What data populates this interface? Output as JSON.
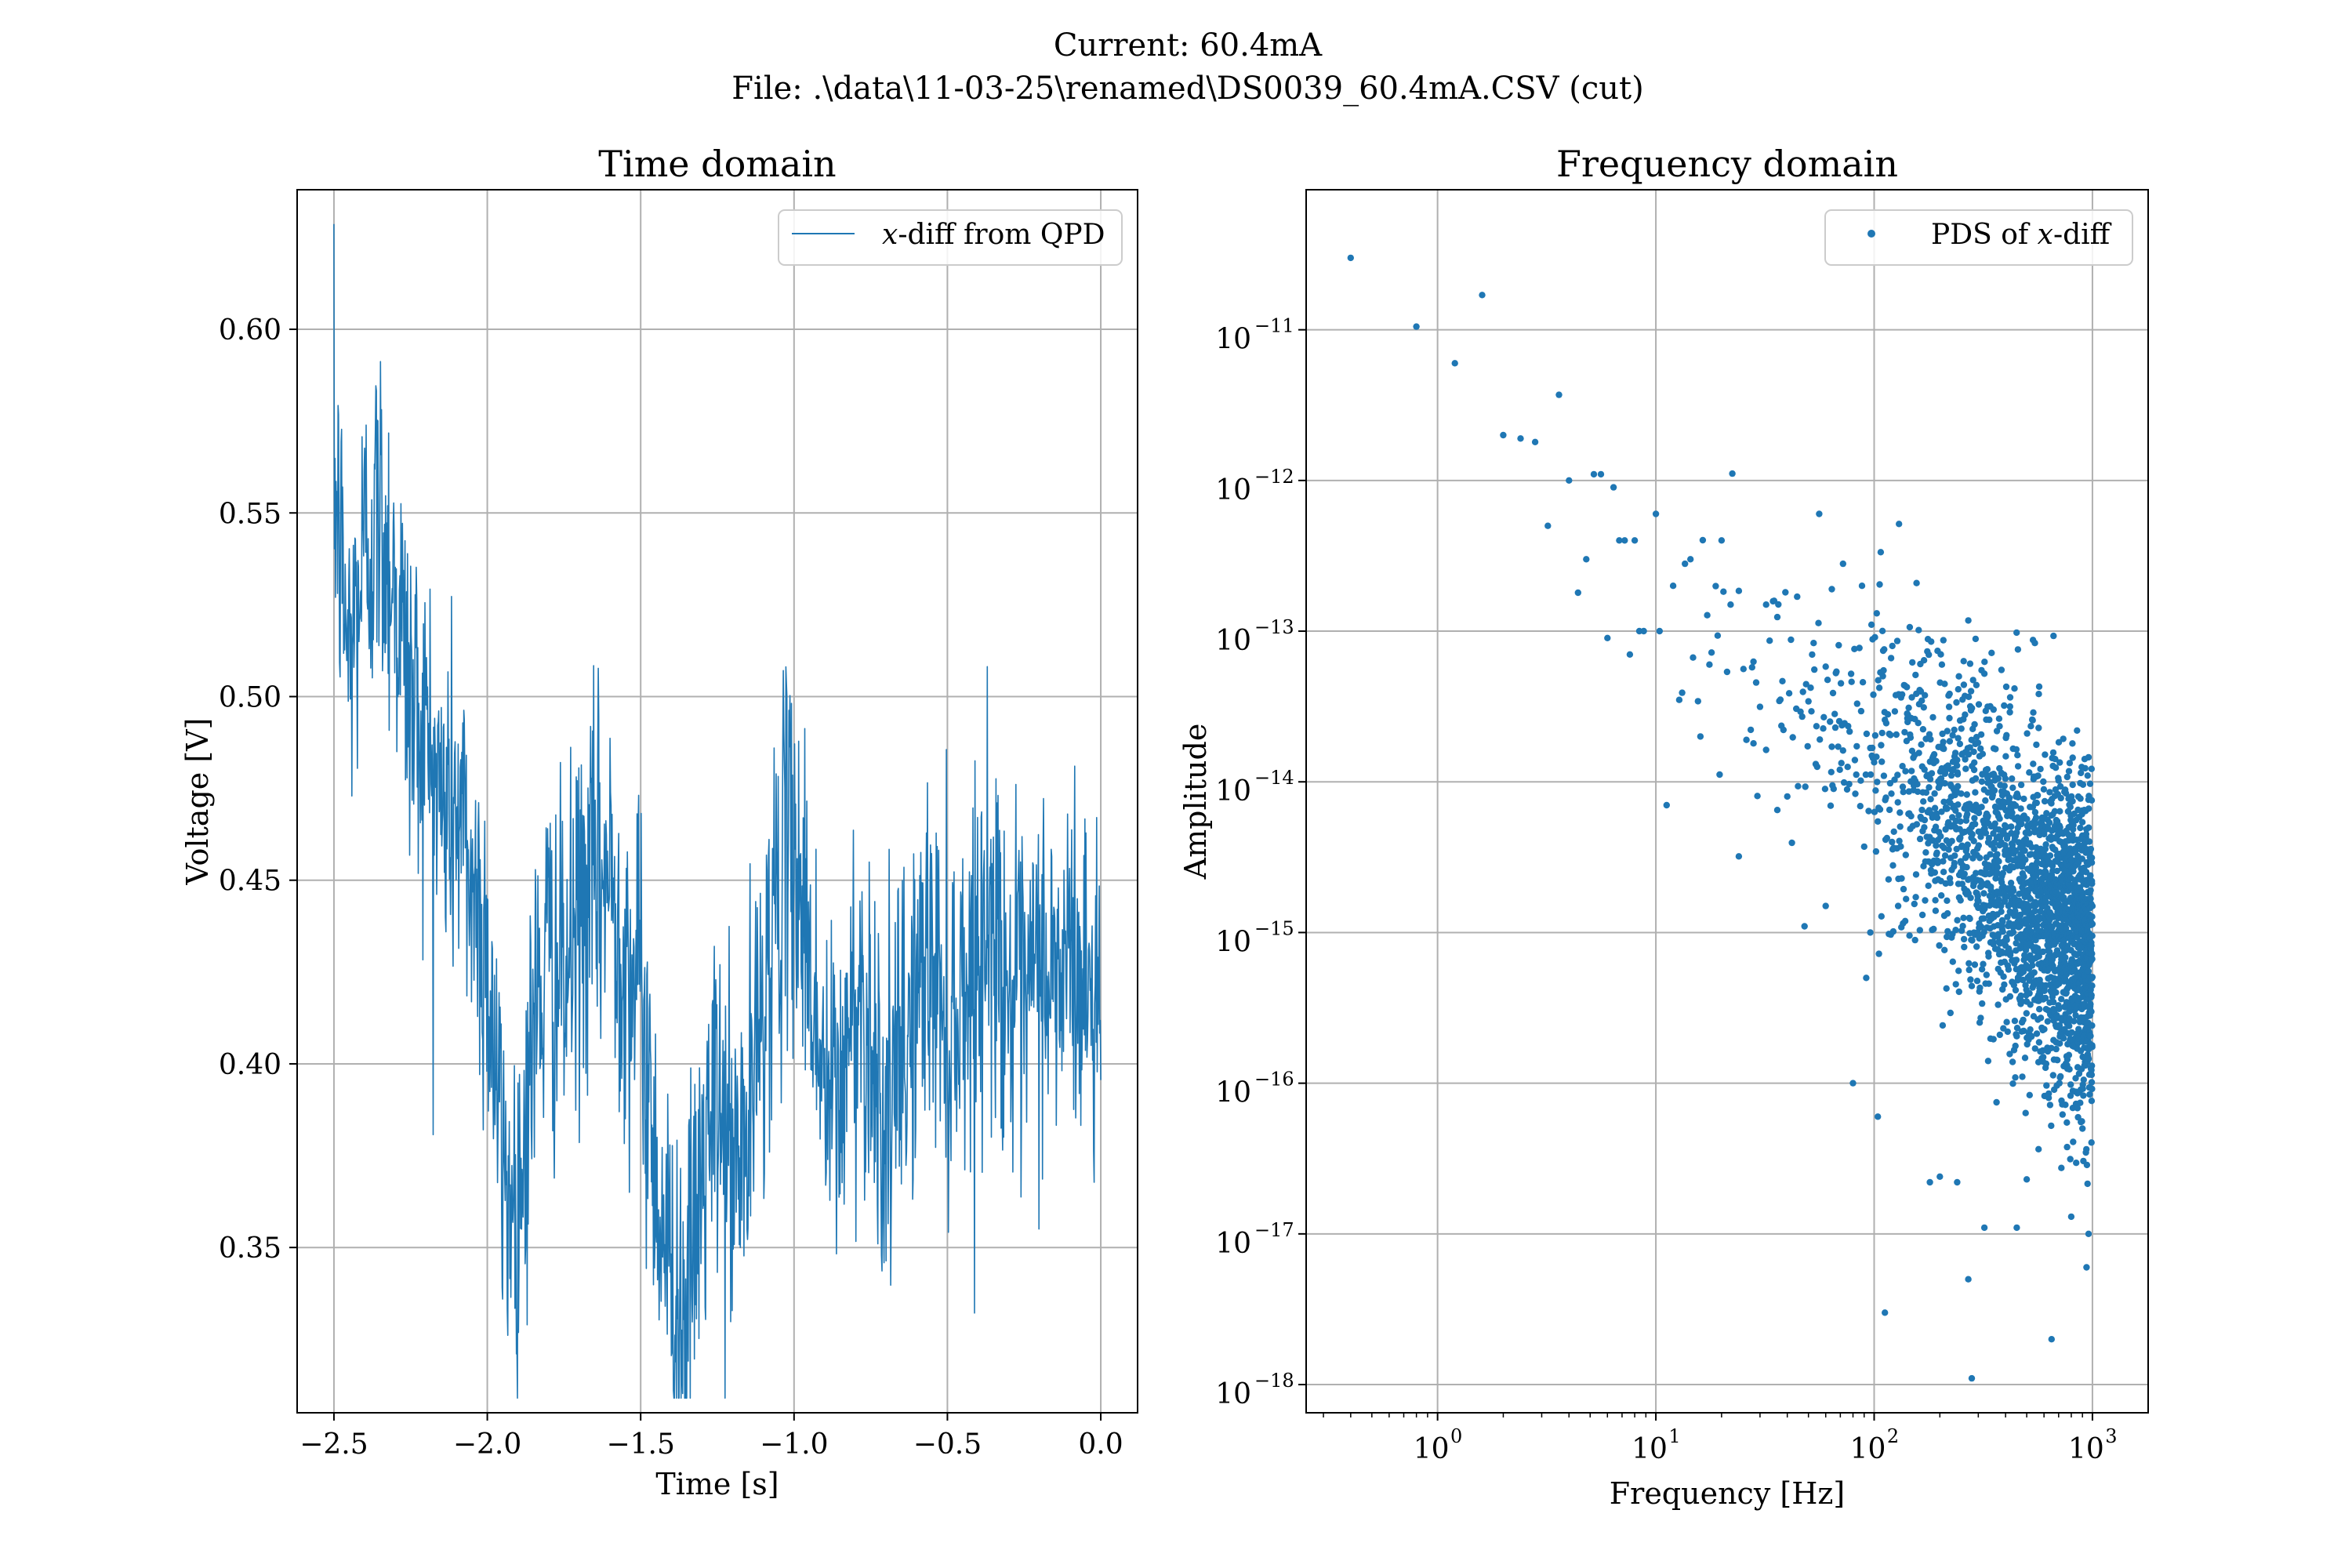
{
  "suptitle": {
    "line1": "Current: 60.4mA",
    "line2": "File: .\\data\\11-03-25\\renamed\\DS0039_60.4mA.CSV (cut)"
  },
  "chart_data": [
    {
      "type": "line",
      "title": "Time domain",
      "xlabel": "Time [s]",
      "ylabel": "Voltage [V]",
      "xlim": [
        -2.62,
        0.12
      ],
      "ylim": [
        0.305,
        0.638
      ],
      "xticks": [
        -2.5,
        -2.0,
        -1.5,
        -1.0,
        -0.5,
        0.0
      ],
      "xtick_labels": [
        "−2.5",
        "−2.0",
        "−1.5",
        "−1.0",
        "−0.5",
        "0.0"
      ],
      "yticks": [
        0.35,
        0.4,
        0.45,
        0.5,
        0.55,
        0.6
      ],
      "ytick_labels": [
        "0.35",
        "0.40",
        "0.45",
        "0.50",
        "0.55",
        "0.60"
      ],
      "grid": true,
      "legend": "upper right",
      "series_color": "#1f77b4",
      "series": [
        {
          "name": "x-diff from QPD",
          "legend_var": "x",
          "legend_rest": "-diff from QPD",
          "x": [
            -2.5,
            -2.45,
            -2.4,
            -2.35,
            -2.3,
            -2.25,
            -2.2,
            -2.15,
            -2.1,
            -2.05,
            -2.0,
            -1.95,
            -1.9,
            -1.85,
            -1.8,
            -1.75,
            -1.7,
            -1.65,
            -1.6,
            -1.55,
            -1.5,
            -1.45,
            -1.4,
            -1.35,
            -1.3,
            -1.25,
            -1.2,
            -1.15,
            -1.1,
            -1.05,
            -1.0,
            -0.95,
            -0.9,
            -0.85,
            -0.8,
            -0.75,
            -0.7,
            -0.65,
            -0.6,
            -0.55,
            -0.5,
            -0.45,
            -0.4,
            -0.35,
            -0.3,
            -0.25,
            -0.2,
            -0.15,
            -0.1,
            -0.05,
            0.0
          ],
          "values": [
            0.56,
            0.51,
            0.54,
            0.55,
            0.53,
            0.5,
            0.49,
            0.47,
            0.47,
            0.45,
            0.43,
            0.37,
            0.36,
            0.41,
            0.43,
            0.42,
            0.44,
            0.45,
            0.45,
            0.43,
            0.42,
            0.37,
            0.34,
            0.33,
            0.37,
            0.39,
            0.37,
            0.38,
            0.42,
            0.45,
            0.46,
            0.43,
            0.39,
            0.39,
            0.42,
            0.41,
            0.38,
            0.4,
            0.42,
            0.43,
            0.41,
            0.42,
            0.43,
            0.44,
            0.42,
            0.41,
            0.43,
            0.42,
            0.43,
            0.42,
            0.42
          ],
          "noise": 0.045
        }
      ]
    },
    {
      "type": "scatter",
      "title": "Frequency domain",
      "xlabel": "Frequency [Hz]",
      "ylabel": "Amplitude",
      "xscale": "log",
      "yscale": "log",
      "xlim": [
        0.25,
        1800
      ],
      "ylim": [
        6.5e-19,
        8.5e-11
      ],
      "xticks": [
        1,
        10,
        100,
        1000
      ],
      "xtick_labels": [
        {
          "base": "10",
          "exp": "0"
        },
        {
          "base": "10",
          "exp": "1"
        },
        {
          "base": "10",
          "exp": "2"
        },
        {
          "base": "10",
          "exp": "3"
        }
      ],
      "yticks": [
        1e-18,
        1e-17,
        1e-16,
        1e-15,
        1e-14,
        1e-13,
        1e-12,
        1e-11
      ],
      "ytick_labels": [
        {
          "base": "10",
          "exp": "−18"
        },
        {
          "base": "10",
          "exp": "−17"
        },
        {
          "base": "10",
          "exp": "−16"
        },
        {
          "base": "10",
          "exp": "−15"
        },
        {
          "base": "10",
          "exp": "−14"
        },
        {
          "base": "10",
          "exp": "−13"
        },
        {
          "base": "10",
          "exp": "−12"
        },
        {
          "base": "10",
          "exp": "−11"
        }
      ],
      "grid": true,
      "legend": "upper right",
      "series_color": "#1f77b4",
      "series": [
        {
          "name": "PDS of x-diff",
          "legend_pre": "PDS of ",
          "legend_var": "x",
          "legend_rest": "-diff",
          "df": 0.4,
          "f_max": 1000,
          "points": [
            [
              0.4,
              3e-11
            ],
            [
              0.8,
              1.05e-11
            ],
            [
              1.2,
              6e-12
            ],
            [
              1.6,
              1.7e-11
            ],
            [
              2.0,
              2e-12
            ],
            [
              2.4,
              1.9e-12
            ],
            [
              2.8,
              1.8e-12
            ],
            [
              3.2,
              5e-13
            ],
            [
              3.6,
              3.7e-12
            ],
            [
              4.0,
              1e-12
            ],
            [
              4.4,
              1.8e-13
            ],
            [
              4.8,
              3e-13
            ],
            [
              5.2,
              1.1e-12
            ],
            [
              5.6,
              1.1e-12
            ],
            [
              6.0,
              9e-14
            ],
            [
              6.4,
              9e-13
            ],
            [
              6.8,
              4e-13
            ],
            [
              7.2,
              4e-13
            ],
            [
              7.6,
              7e-14
            ],
            [
              8.0,
              4e-13
            ],
            [
              8.4,
              1e-13
            ],
            [
              8.8,
              1e-13
            ],
            [
              10.0,
              6e-13
            ],
            [
              10.4,
              1e-13
            ],
            [
              11.2,
              7e-15
            ],
            [
              12.0,
              2e-13
            ],
            [
              12.8,
              3.5e-14
            ],
            [
              13.6,
              2.8e-13
            ],
            [
              14.4,
              3e-13
            ],
            [
              16.0,
              2e-14
            ],
            [
              17.6,
              6e-14
            ],
            [
              20.0,
              4e-13
            ],
            [
              22.0,
              1.5e-13
            ],
            [
              24.0,
              3.2e-15
            ],
            [
              26.0,
              1.9e-14
            ],
            [
              28.0,
              1.8e-14
            ],
            [
              32.0,
              1.5e-13
            ],
            [
              36.0,
              6.5e-15
            ],
            [
              40.0,
              8e-15
            ],
            [
              48.0,
              1.1e-15
            ],
            [
              56.0,
              6e-13
            ],
            [
              60.0,
              1.5e-15
            ],
            [
              64.0,
              1.9e-13
            ],
            [
              72.0,
              2.8e-13
            ],
            [
              80.0,
              1e-16
            ],
            [
              88.0,
              2e-13
            ],
            [
              92.0,
              5e-16
            ],
            [
              96.0,
              1e-15
            ],
            [
              104.0,
              6e-17
            ],
            [
              112.0,
              3e-18
            ],
            [
              180.0,
              2.2e-17
            ],
            [
              200.0,
              2.4e-17
            ],
            [
              240.0,
              2.2e-17
            ],
            [
              270.0,
              5e-18
            ],
            [
              280.0,
              1.1e-18
            ],
            [
              320.0,
              1.1e-17
            ],
            [
              450.0,
              1.1e-17
            ],
            [
              500.0,
              2.3e-17
            ],
            [
              650.0,
              2e-18
            ],
            [
              800.0,
              1.3e-17
            ],
            [
              900.0,
              5e-17
            ],
            [
              940.0,
              6e-18
            ],
            [
              960.0,
              1e-17
            ]
          ]
        }
      ]
    }
  ]
}
